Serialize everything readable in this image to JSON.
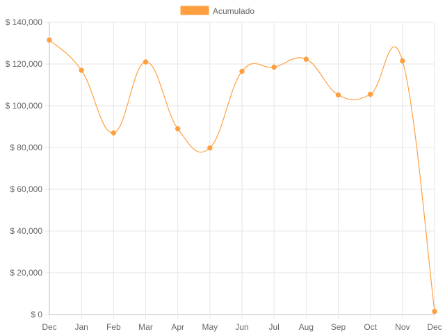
{
  "chart_data": {
    "type": "line",
    "title": "",
    "xlabel": "",
    "ylabel": "",
    "legend": {
      "position": "top-center",
      "entries": [
        "Acumulado"
      ]
    },
    "grid": true,
    "categories": [
      "Dec",
      "Jan",
      "Feb",
      "Mar",
      "Apr",
      "May",
      "Jun",
      "Jul",
      "Aug",
      "Sep",
      "Oct",
      "Nov",
      "Dec"
    ],
    "series": [
      {
        "name": "Acumulado",
        "color": "#ff9f40",
        "values": [
          131500,
          117000,
          87000,
          121000,
          89000,
          79800,
          116500,
          118500,
          122300,
          105200,
          105500,
          121500,
          1500
        ]
      }
    ],
    "ylim": [
      0,
      140000
    ],
    "yticks": [
      0,
      20000,
      40000,
      60000,
      80000,
      100000,
      120000,
      140000
    ],
    "ytick_labels": [
      "$ 0",
      "$ 20,000",
      "$ 40,000",
      "$ 60,000",
      "$ 80,000",
      "$ 100,000",
      "$ 120,000",
      "$ 140,000"
    ]
  }
}
